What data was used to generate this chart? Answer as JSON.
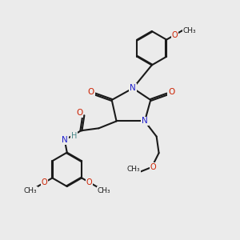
{
  "bg_color": "#ebebeb",
  "bond_color": "#1a1a1a",
  "N_color": "#2020cc",
  "O_color": "#cc2000",
  "H_color": "#4a8888",
  "lw": 1.5,
  "doff": 0.04,
  "xlim": [
    0,
    10
  ],
  "ylim": [
    0,
    10
  ]
}
